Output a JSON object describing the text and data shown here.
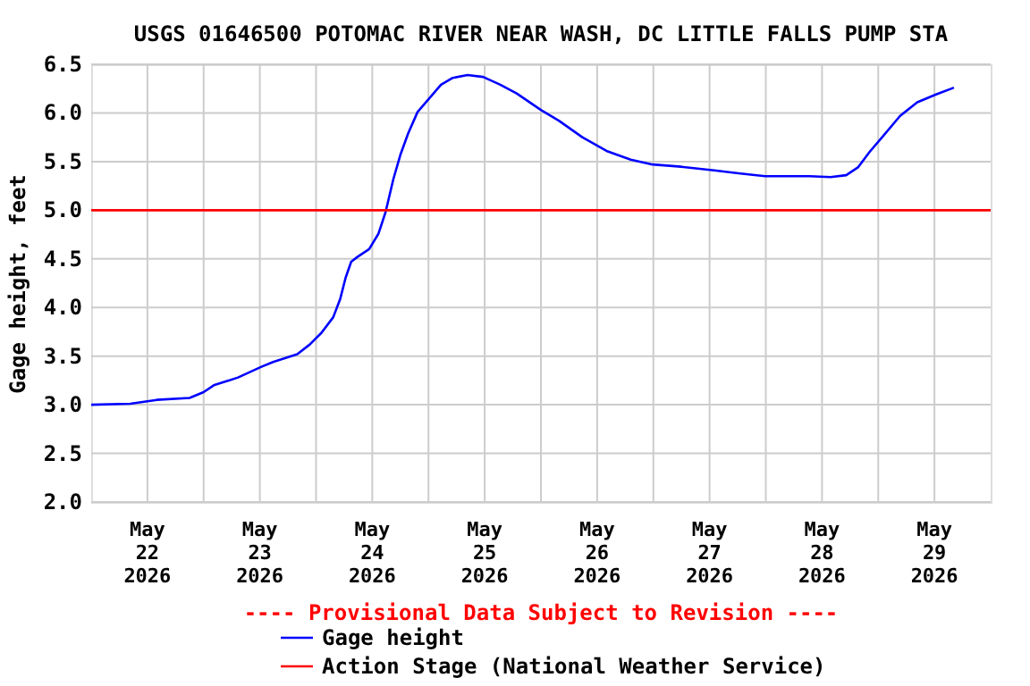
{
  "chart_data": {
    "type": "line",
    "title": "USGS 01646500 POTOMAC RIVER NEAR WASH, DC LITTLE FALLS PUMP STA",
    "ylabel": "Gage height, feet",
    "annotations": [
      "---- Provisional Data Subject to Revision ----"
    ],
    "x": [
      "2026-05-22T00:00",
      "2026-05-22T08:20",
      "2026-05-22T14:00",
      "2026-05-22T21:00",
      "2026-05-23T00:00",
      "2026-05-23T02:10",
      "2026-05-23T07:20",
      "2026-05-23T12:20",
      "2026-05-23T14:50",
      "2026-05-23T20:00",
      "2026-05-23T22:40",
      "2026-05-24T01:10",
      "2026-05-24T03:40",
      "2026-05-24T05:10",
      "2026-05-24T06:20",
      "2026-05-24T07:30",
      "2026-05-24T08:50",
      "2026-05-24T11:20",
      "2026-05-24T13:20",
      "2026-05-24T14:50",
      "2026-05-24T16:30",
      "2026-05-24T18:00",
      "2026-05-24T19:40",
      "2026-05-24T21:40",
      "2026-05-25T00:10",
      "2026-05-25T02:40",
      "2026-05-25T05:10",
      "2026-05-25T08:20",
      "2026-05-25T11:40",
      "2026-05-25T15:20",
      "2026-05-25T18:50",
      "2026-05-26T00:00",
      "2026-05-26T03:50",
      "2026-05-26T08:50",
      "2026-05-26T14:00",
      "2026-05-26T19:10",
      "2026-05-26T23:50",
      "2026-05-27T05:20",
      "2026-05-27T13:00",
      "2026-05-27T18:10",
      "2026-05-27T23:50",
      "2026-05-28T09:20",
      "2026-05-28T13:50",
      "2026-05-28T17:10",
      "2026-05-28T19:40",
      "2026-05-28T22:10",
      "2026-05-29T00:50",
      "2026-05-29T04:40",
      "2026-05-29T08:20",
      "2026-05-29T12:20",
      "2026-05-29T16:10"
    ],
    "series": [
      {
        "name": "Gage height",
        "color": "#0000ff",
        "values": [
          3.0,
          3.01,
          3.05,
          3.07,
          3.13,
          3.2,
          3.28,
          3.39,
          3.44,
          3.52,
          3.62,
          3.74,
          3.9,
          4.09,
          4.31,
          4.47,
          4.52,
          4.6,
          4.76,
          4.98,
          5.32,
          5.57,
          5.79,
          6.01,
          6.15,
          6.29,
          6.36,
          6.39,
          6.37,
          6.29,
          6.2,
          6.03,
          5.92,
          5.75,
          5.61,
          5.52,
          5.47,
          5.45,
          5.41,
          5.38,
          5.35,
          5.35,
          5.34,
          5.36,
          5.44,
          5.6,
          5.75,
          5.97,
          6.11,
          6.19,
          6.26
        ]
      }
    ],
    "ref_lines": [
      {
        "axis": "y",
        "value": 5.0,
        "label": "Action Stage (National Weather Service)",
        "color": "#ff0000"
      }
    ],
    "xlim": [
      "2026-05-22T00:00",
      "2026-05-30T00:00"
    ],
    "xticks": [
      {
        "value": "2026-05-22T12:00",
        "label": "May\n22\n2026"
      },
      {
        "value": "2026-05-23T12:00",
        "label": "May\n23\n2026"
      },
      {
        "value": "2026-05-24T12:00",
        "label": "May\n24\n2026"
      },
      {
        "value": "2026-05-25T12:00",
        "label": "May\n25\n2026"
      },
      {
        "value": "2026-05-26T12:00",
        "label": "May\n26\n2026"
      },
      {
        "value": "2026-05-27T12:00",
        "label": "May\n27\n2026"
      },
      {
        "value": "2026-05-28T12:00",
        "label": "May\n28\n2026"
      },
      {
        "value": "2026-05-29T12:00",
        "label": "May\n29\n2026"
      },
      {
        "value": "2026-05-23T00:00",
        "label": null
      },
      {
        "value": "2026-05-24T00:00",
        "label": null
      },
      {
        "value": "2026-05-25T00:00",
        "label": null
      },
      {
        "value": "2026-05-26T00:00",
        "label": null
      },
      {
        "value": "2026-05-27T00:00",
        "label": null
      },
      {
        "value": "2026-05-28T00:00",
        "label": null
      },
      {
        "value": "2026-05-29T00:00",
        "label": null
      }
    ],
    "ylim": [
      2.0,
      6.5
    ],
    "yticks": [
      {
        "value": 2.0,
        "label": "2.0"
      },
      {
        "value": 2.5,
        "label": "2.5"
      },
      {
        "value": 3.0,
        "label": "3.0"
      },
      {
        "value": 3.5,
        "label": "3.5"
      },
      {
        "value": 4.0,
        "label": "4.0"
      },
      {
        "value": 4.5,
        "label": "4.5"
      },
      {
        "value": 5.0,
        "label": "5.0"
      },
      {
        "value": 5.5,
        "label": "5.5"
      },
      {
        "value": 6.0,
        "label": "6.0"
      },
      {
        "value": 6.5,
        "label": "6.5"
      }
    ],
    "grid": true,
    "legend": "bottom"
  }
}
